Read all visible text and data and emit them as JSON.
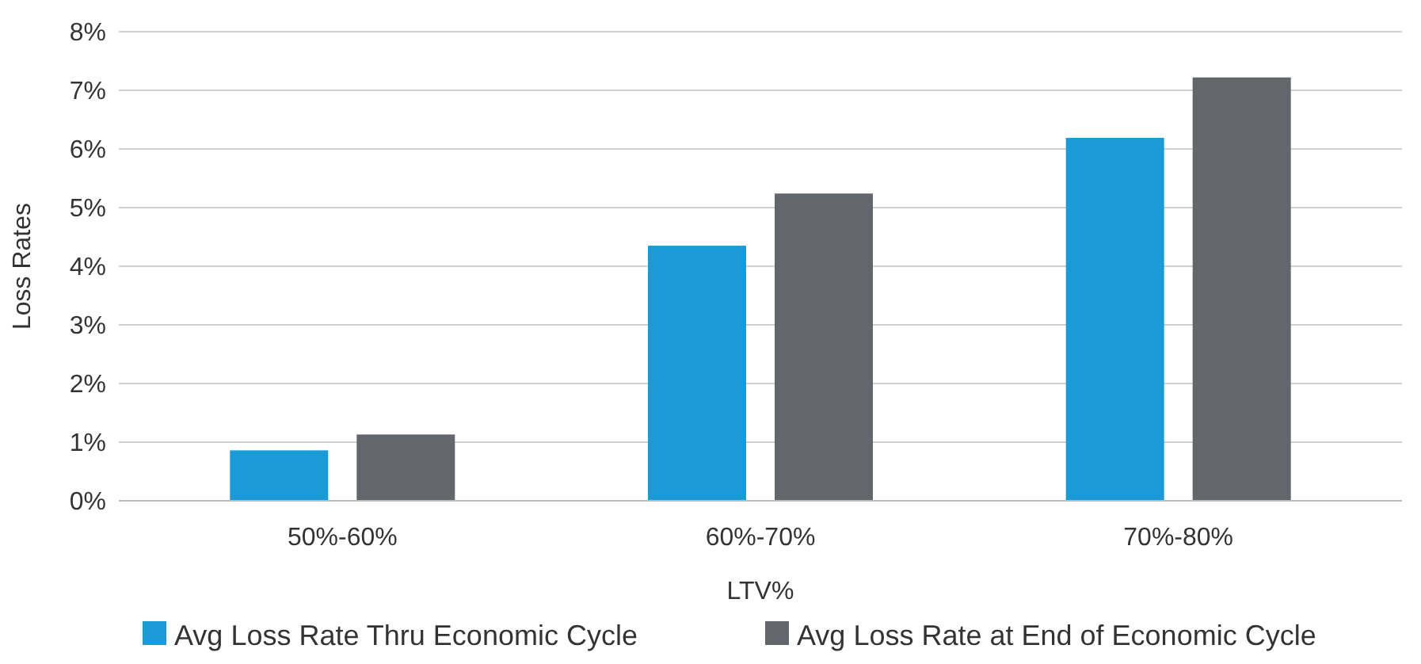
{
  "chart_data": {
    "type": "bar",
    "xlabel": "LTV%",
    "ylabel": "Loss Rates",
    "categories": [
      "50%-60%",
      "60%-70%",
      "70%-80%"
    ],
    "series": [
      {
        "name": "Avg Loss Rate Thru Economic Cycle",
        "color": "#1a9ad6",
        "values": [
          0.86,
          4.35,
          6.19
        ]
      },
      {
        "name": "Avg Loss Rate at End of Economic Cycle",
        "color": "#63666a",
        "values": [
          1.13,
          5.24,
          7.22
        ]
      }
    ],
    "ylim": [
      0,
      8
    ],
    "yticks": [
      {
        "value": 0,
        "label": "0%"
      },
      {
        "value": 1,
        "label": "1%"
      },
      {
        "value": 2,
        "label": "2%"
      },
      {
        "value": 3,
        "label": "3%"
      },
      {
        "value": 4,
        "label": "4%"
      },
      {
        "value": 5,
        "label": "5%"
      },
      {
        "value": 6,
        "label": "6%"
      },
      {
        "value": 7,
        "label": "7%"
      },
      {
        "value": 8,
        "label": "8%"
      }
    ],
    "grid": "y",
    "legend": "bottom"
  }
}
